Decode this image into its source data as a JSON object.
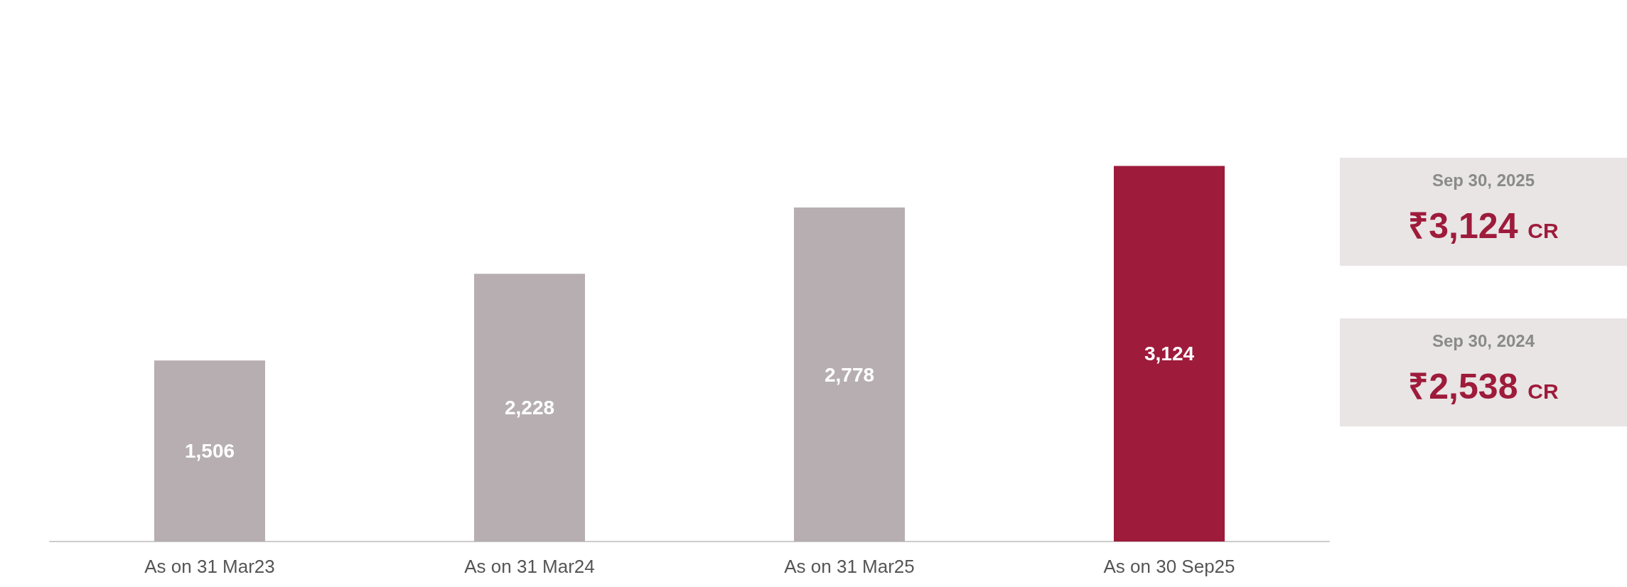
{
  "chart_data": {
    "type": "bar",
    "categories": [
      "As on 31 Mar23",
      "As on 31 Mar24",
      "As on 31 Mar25",
      "As on 30 Sep25"
    ],
    "values": [
      1506,
      2228,
      2778,
      3124
    ],
    "colors": [
      "#b6aeb1",
      "#b6aeb1",
      "#b6aeb1",
      "#9e1b3b"
    ],
    "value_labels": [
      "1,506",
      "2,228",
      "2,778",
      "3,124"
    ],
    "grid": false,
    "annotations": [
      "Sep 30, 2025",
      "₹3,124 CR",
      "Sep 30, 2024",
      "₹2,538 CR"
    ]
  }
}
